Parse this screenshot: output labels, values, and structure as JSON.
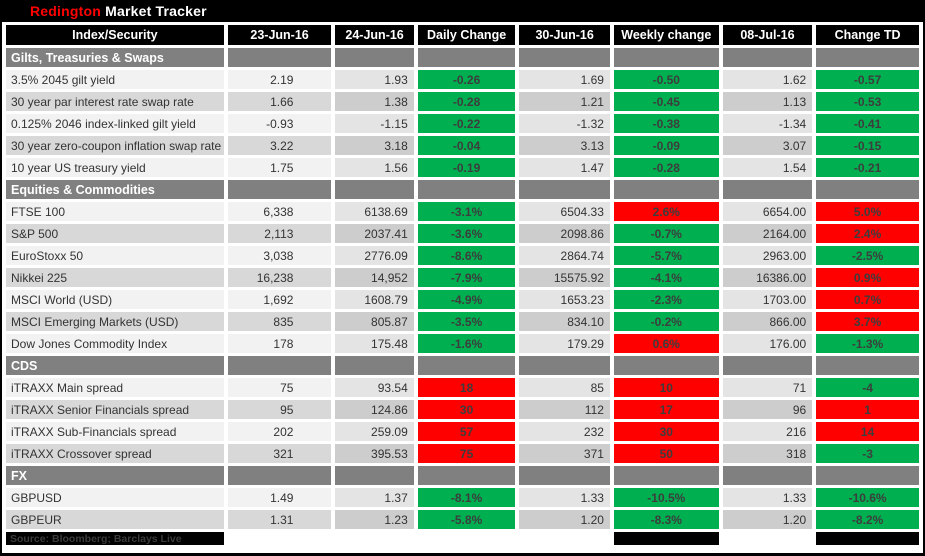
{
  "title": {
    "brand": "Redington",
    "product": " Market Tracker"
  },
  "columns": [
    "Index/Security",
    "23-Jun-16",
    "24-Jun-16",
    "Daily Change",
    "30-Jun-16",
    "Weekly change",
    "08-Jul-16",
    "Change TD"
  ],
  "palette": {
    "green": "#00B050",
    "red": "#FF0000",
    "section_bg": "#808080",
    "header_bg": "#000000",
    "brand_red": "#FF0000"
  },
  "sections": [
    {
      "name": "Gilts, Treasuries & Swaps",
      "rows": [
        {
          "label": "3.5% 2045 gilt yield",
          "jun23": "2.19",
          "jun24": "1.93",
          "daily": "-0.26",
          "daily_color": "green",
          "jun30": "1.69",
          "weekly": "-0.50",
          "weekly_color": "green",
          "jul08": "1.62",
          "td": "-0.57",
          "td_color": "green"
        },
        {
          "label": "30 year par interest rate swap rate",
          "jun23": "1.66",
          "jun24": "1.38",
          "daily": "-0.28",
          "daily_color": "green",
          "jun30": "1.21",
          "weekly": "-0.45",
          "weekly_color": "green",
          "jul08": "1.13",
          "td": "-0.53",
          "td_color": "green"
        },
        {
          "label": "0.125% 2046 index-linked gilt yield",
          "jun23": "-0.93",
          "jun24": "-1.15",
          "daily": "-0.22",
          "daily_color": "green",
          "jun30": "-1.32",
          "weekly": "-0.38",
          "weekly_color": "green",
          "jul08": "-1.34",
          "td": "-0.41",
          "td_color": "green"
        },
        {
          "label": "30 year zero-coupon inflation swap rate",
          "jun23": "3.22",
          "jun24": "3.18",
          "daily": "-0.04",
          "daily_color": "green",
          "jun30": "3.13",
          "weekly": "-0.09",
          "weekly_color": "green",
          "jul08": "3.07",
          "td": "-0.15",
          "td_color": "green"
        },
        {
          "label": "10 year US treasury yield",
          "jun23": "1.75",
          "jun24": "1.56",
          "daily": "-0.19",
          "daily_color": "green",
          "jun30": "1.47",
          "weekly": "-0.28",
          "weekly_color": "green",
          "jul08": "1.54",
          "td": "-0.21",
          "td_color": "green"
        }
      ]
    },
    {
      "name": "Equities & Commodities",
      "rows": [
        {
          "label": "FTSE 100",
          "jun23": "6,338",
          "jun24": "6138.69",
          "daily": "-3.1%",
          "daily_color": "green",
          "jun30": "6504.33",
          "weekly": "2.6%",
          "weekly_color": "red",
          "jul08": "6654.00",
          "td": "5.0%",
          "td_color": "red"
        },
        {
          "label": "S&P 500",
          "jun23": "2,113",
          "jun24": "2037.41",
          "daily": "-3.6%",
          "daily_color": "green",
          "jun30": "2098.86",
          "weekly": "-0.7%",
          "weekly_color": "green",
          "jul08": "2164.00",
          "td": "2.4%",
          "td_color": "red"
        },
        {
          "label": "EuroStoxx 50",
          "jun23": "3,038",
          "jun24": "2776.09",
          "daily": "-8.6%",
          "daily_color": "green",
          "jun30": "2864.74",
          "weekly": "-5.7%",
          "weekly_color": "green",
          "jul08": "2963.00",
          "td": "-2.5%",
          "td_color": "green"
        },
        {
          "label": "Nikkei 225",
          "jun23": "16,238",
          "jun24": "14,952",
          "daily": "-7.9%",
          "daily_color": "green",
          "jun30": "15575.92",
          "weekly": "-4.1%",
          "weekly_color": "green",
          "jul08": "16386.00",
          "td": "0.9%",
          "td_color": "red"
        },
        {
          "label": "MSCI World (USD)",
          "jun23": "1,692",
          "jun24": "1608.79",
          "daily": "-4.9%",
          "daily_color": "green",
          "jun30": "1653.23",
          "weekly": "-2.3%",
          "weekly_color": "green",
          "jul08": "1703.00",
          "td": "0.7%",
          "td_color": "red"
        },
        {
          "label": "MSCI Emerging Markets (USD)",
          "jun23": "835",
          "jun24": "805.87",
          "daily": "-3.5%",
          "daily_color": "green",
          "jun30": "834.10",
          "weekly": "-0.2%",
          "weekly_color": "green",
          "jul08": "866.00",
          "td": "3.7%",
          "td_color": "red"
        },
        {
          "label": "Dow Jones Commodity Index",
          "jun23": "178",
          "jun24": "175.48",
          "daily": "-1.6%",
          "daily_color": "green",
          "jun30": "179.29",
          "weekly": "0.6%",
          "weekly_color": "red",
          "jul08": "176.00",
          "td": "-1.3%",
          "td_color": "green"
        }
      ]
    },
    {
      "name": "CDS",
      "rows": [
        {
          "label": "iTRAXX Main spread",
          "jun23": "75",
          "jun24": "93.54",
          "daily": "18",
          "daily_color": "red",
          "jun30": "85",
          "weekly": "10",
          "weekly_color": "red",
          "jul08": "71",
          "td": "-4",
          "td_color": "green"
        },
        {
          "label": "iTRAXX Senior Financials spread",
          "jun23": "95",
          "jun24": "124.86",
          "daily": "30",
          "daily_color": "red",
          "jun30": "112",
          "weekly": "17",
          "weekly_color": "red",
          "jul08": "96",
          "td": "1",
          "td_color": "red"
        },
        {
          "label": "iTRAXX Sub-Financials spread",
          "jun23": "202",
          "jun24": "259.09",
          "daily": "57",
          "daily_color": "red",
          "jun30": "232",
          "weekly": "30",
          "weekly_color": "red",
          "jul08": "216",
          "td": "14",
          "td_color": "red"
        },
        {
          "label": "iTRAXX Crossover spread",
          "jun23": "321",
          "jun24": "395.53",
          "daily": "75",
          "daily_color": "red",
          "jun30": "371",
          "weekly": "50",
          "weekly_color": "red",
          "jul08": "318",
          "td": "-3",
          "td_color": "green"
        }
      ]
    },
    {
      "name": "FX",
      "rows": [
        {
          "label": "GBPUSD",
          "jun23": "1.49",
          "jun24": "1.37",
          "daily": "-8.1%",
          "daily_color": "green",
          "jun30": "1.33",
          "weekly": "-10.5%",
          "weekly_color": "green",
          "jul08": "1.33",
          "td": "-10.6%",
          "td_color": "green"
        },
        {
          "label": "GBPEUR",
          "jun23": "1.31",
          "jun24": "1.23",
          "daily": "-5.8%",
          "daily_color": "green",
          "jun30": "1.20",
          "weekly": "-8.3%",
          "weekly_color": "green",
          "jul08": "1.20",
          "td": "-8.2%",
          "td_color": "green"
        }
      ]
    }
  ],
  "footer": {
    "source": "Source: Bloomberg; Barclays Live"
  }
}
